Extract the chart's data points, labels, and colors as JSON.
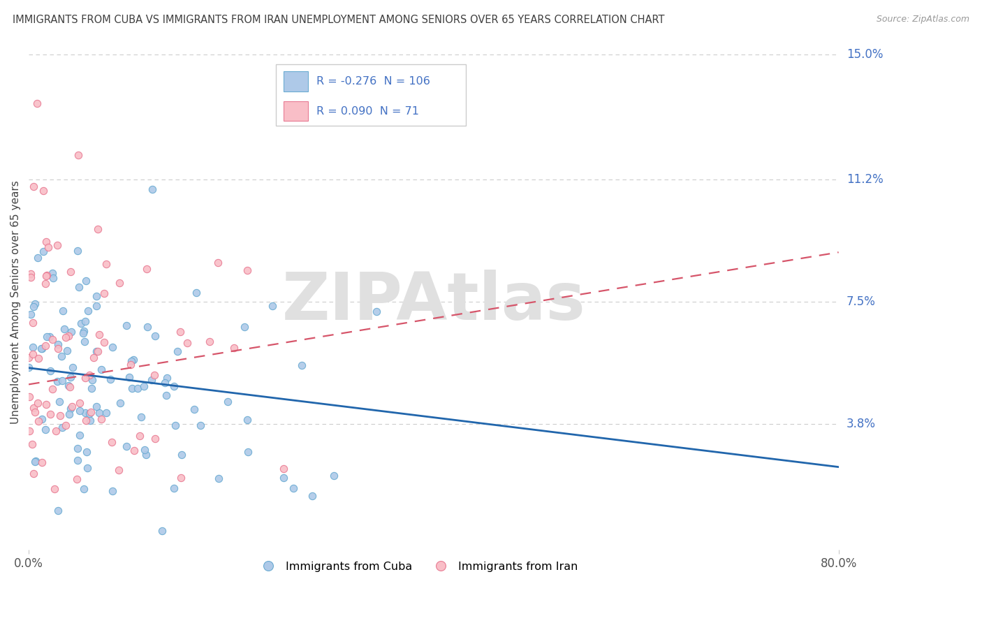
{
  "title": "IMMIGRANTS FROM CUBA VS IMMIGRANTS FROM IRAN UNEMPLOYMENT AMONG SENIORS OVER 65 YEARS CORRELATION CHART",
  "source": "Source: ZipAtlas.com",
  "ylabel": "Unemployment Among Seniors over 65 years",
  "xlim": [
    0.0,
    80.0
  ],
  "ylim": [
    0.0,
    15.0
  ],
  "ytick_positions": [
    3.8,
    7.5,
    11.2,
    15.0
  ],
  "ytick_labels": [
    "3.8%",
    "7.5%",
    "11.2%",
    "15.0%"
  ],
  "xtick_labels": [
    "0.0%",
    "80.0%"
  ],
  "cuba_R": -0.276,
  "cuba_N": 106,
  "iran_R": 0.09,
  "iran_N": 71,
  "cuba_color": "#aec9e8",
  "cuba_edge_color": "#6aabd2",
  "iran_color": "#f9bec7",
  "iran_edge_color": "#e87b93",
  "cuba_line_color": "#2166ac",
  "iran_line_color": "#d6556a",
  "background_color": "#ffffff",
  "grid_color": "#cccccc",
  "title_color": "#404040",
  "axis_label_color": "#4472c4",
  "source_color": "#999999",
  "watermark_text": "ZIPAtlas",
  "watermark_color": "#e0e0e0",
  "legend_label_cuba": "Immigrants from Cuba",
  "legend_label_iran": "Immigrants from Iran",
  "legend_text_color": "#4472c4"
}
